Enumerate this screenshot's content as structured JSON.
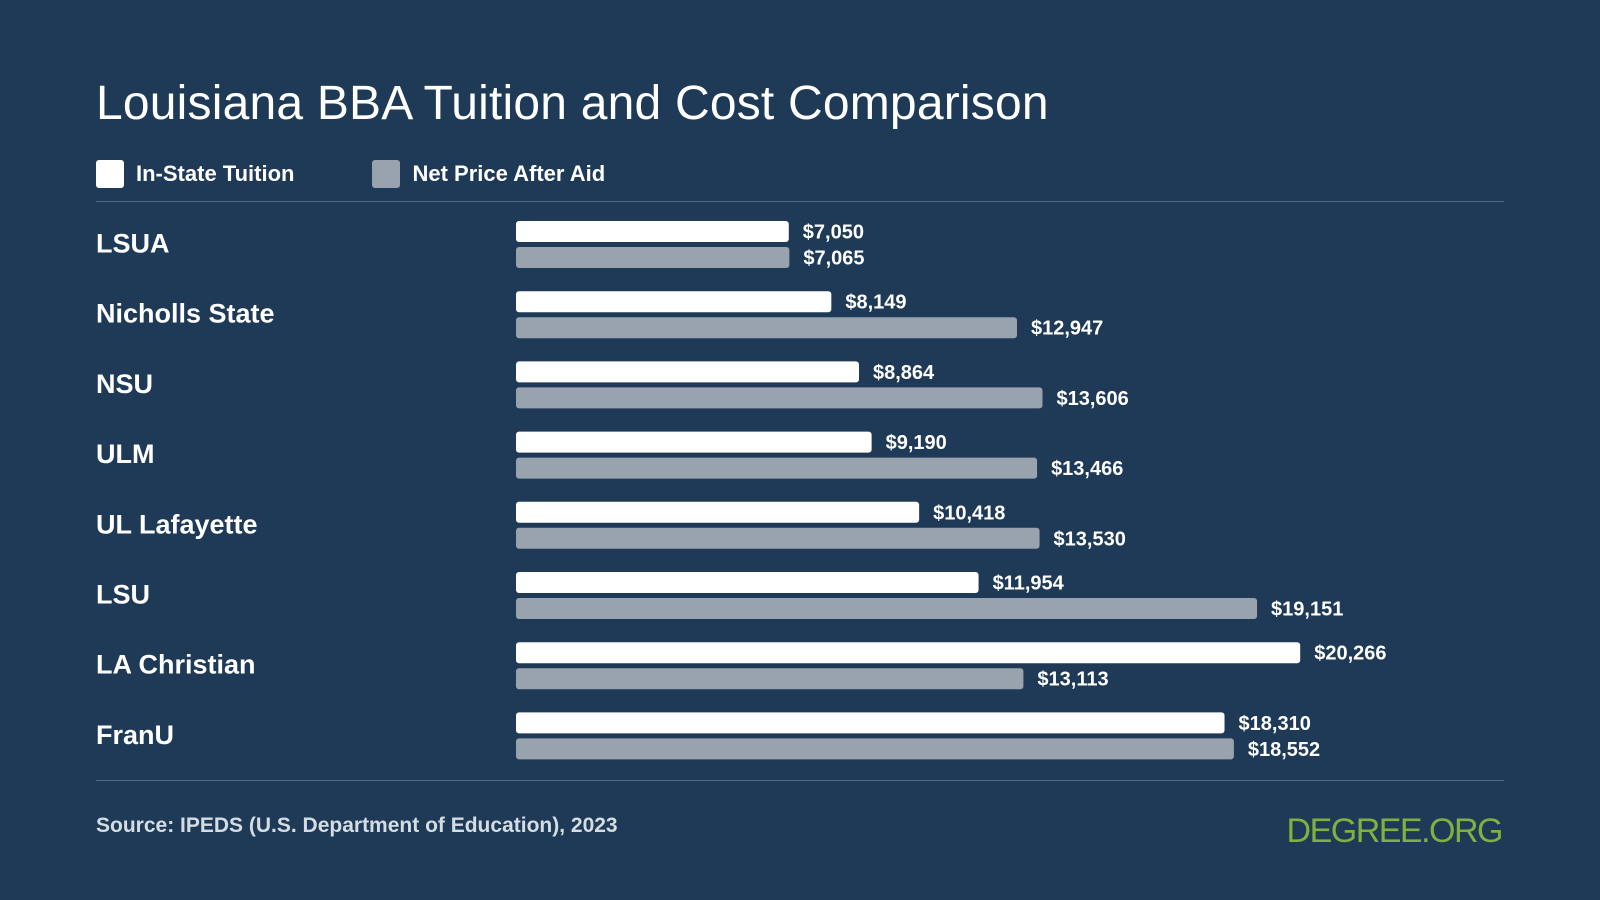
{
  "colors": {
    "background": "#1e3a56",
    "in_state": "#ffffff",
    "net_price": "#99a3ae",
    "brand": "#7fb040"
  },
  "chart_data": {
    "type": "bar",
    "orientation": "horizontal",
    "title": "Louisiana BBA Tuition and Cost Comparison",
    "legend_position": "top-left",
    "grid": false,
    "xlim": [
      0,
      23000
    ],
    "categories": [
      "LSUA",
      "Nicholls State",
      "NSU",
      "ULM",
      "UL Lafayette",
      "LSU",
      "LA Christian",
      "FranU"
    ],
    "series": [
      {
        "name": "In-State Tuition",
        "color": "#ffffff",
        "values": [
          7050,
          8149,
          8864,
          9190,
          10418,
          11954,
          20266,
          18310
        ],
        "labels": [
          "$7,050",
          "$8,149",
          "$8,864",
          "$9,190",
          "$10,418",
          "$11,954",
          "$20,266",
          "$18,310"
        ]
      },
      {
        "name": "Net Price After Aid",
        "color": "#99a3ae",
        "values": [
          7065,
          12947,
          13606,
          13466,
          13530,
          19151,
          13113,
          18552
        ],
        "labels": [
          "$7,065",
          "$12,947",
          "$13,606",
          "$13,466",
          "$13,530",
          "$19,151",
          "$13,113",
          "$18,552"
        ]
      }
    ]
  },
  "footer": {
    "source": "Source: IPEDS (U.S. Department of Education), 2023",
    "brand": "DEGREE.ORG"
  }
}
